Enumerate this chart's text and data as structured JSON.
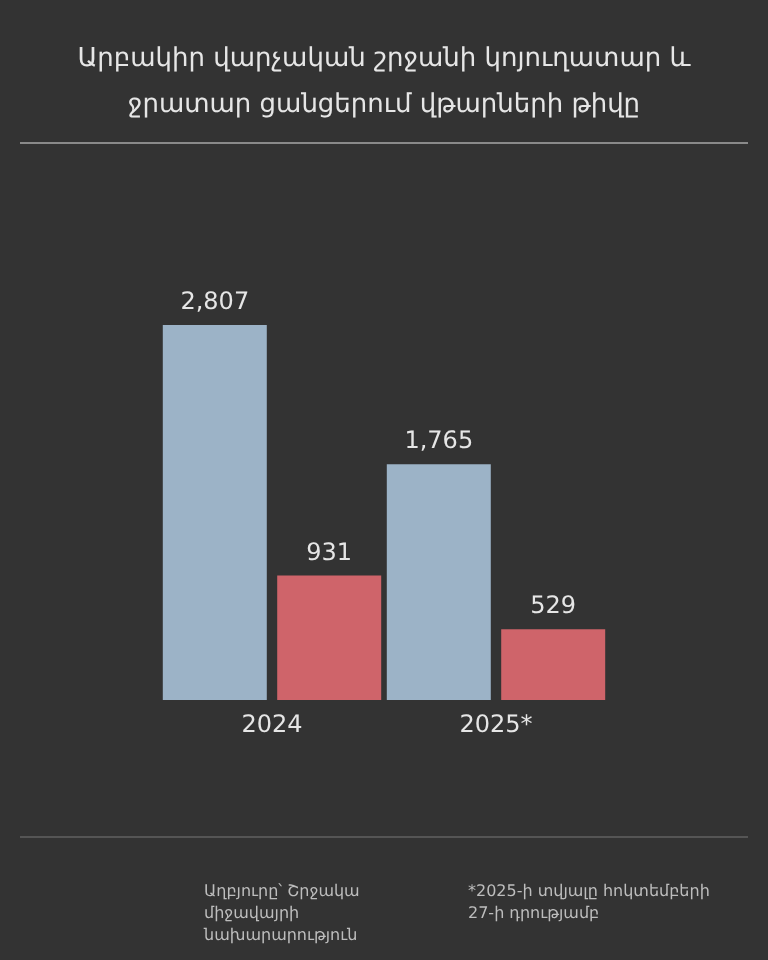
{
  "chart_data": {
    "type": "bar",
    "title": "Արբակիր վարչական շրջանի կոյուղատար և ջրատար ցանցերում վթարների թիվը",
    "categories": [
      "2024",
      "2025*"
    ],
    "series": [
      {
        "color": "#9cb3c7",
        "values": [
          2807,
          1765
        ],
        "value_labels": [
          "2,807",
          "1,765"
        ]
      },
      {
        "color": "#cf646a",
        "values": [
          931,
          529
        ],
        "value_labels": [
          "931",
          "529"
        ]
      }
    ],
    "grid": false,
    "annotations": [
      "Աղբյուրը՝ Շրջակա միջավայրի նախարարություն",
      "*2025-ի տվյալը հոկտեմբերի 27-ի դրությամբ"
    ]
  }
}
